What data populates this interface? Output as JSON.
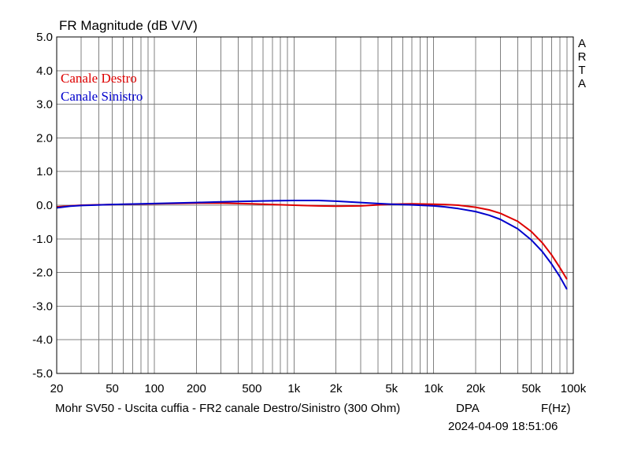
{
  "chart_data": {
    "type": "line",
    "title": "FR Magnitude (dB V/V)",
    "xlabel": "F(Hz)",
    "ylabel": "",
    "x_scale": "log",
    "xlim": [
      20,
      100000
    ],
    "ylim": [
      -5.0,
      5.0
    ],
    "grid": true,
    "legend_placement": "top-left",
    "x_ticks": [
      {
        "v": 20,
        "label": "20"
      },
      {
        "v": 50,
        "label": "50"
      },
      {
        "v": 100,
        "label": "100"
      },
      {
        "v": 200,
        "label": "200"
      },
      {
        "v": 500,
        "label": "500"
      },
      {
        "v": 1000,
        "label": "1k"
      },
      {
        "v": 2000,
        "label": "2k"
      },
      {
        "v": 5000,
        "label": "5k"
      },
      {
        "v": 10000,
        "label": "10k"
      },
      {
        "v": 20000,
        "label": "20k"
      },
      {
        "v": 50000,
        "label": "50k"
      },
      {
        "v": 100000,
        "label": "100k"
      }
    ],
    "y_ticks": [
      {
        "v": 5,
        "label": "5.0"
      },
      {
        "v": 4,
        "label": "4.0"
      },
      {
        "v": 3,
        "label": "3.0"
      },
      {
        "v": 2,
        "label": "2.0"
      },
      {
        "v": 1,
        "label": "1.0"
      },
      {
        "v": 0,
        "label": "0.0"
      },
      {
        "v": -1,
        "label": "-1.0"
      },
      {
        "v": -2,
        "label": "-2.0"
      },
      {
        "v": -3,
        "label": "-3.0"
      },
      {
        "v": -4,
        "label": "-4.0"
      },
      {
        "v": -5,
        "label": "-5.0"
      }
    ],
    "series": [
      {
        "name": "Canale Destro",
        "color": "#dd0000",
        "x": [
          20,
          25,
          30,
          50,
          100,
          200,
          300,
          500,
          700,
          1000,
          1500,
          2000,
          3000,
          4000,
          5000,
          7000,
          10000,
          12000,
          15000,
          20000,
          25000,
          30000,
          40000,
          50000,
          60000,
          70000,
          80000,
          90000
        ],
        "y": [
          -0.05,
          -0.02,
          0.0,
          0.02,
          0.04,
          0.06,
          0.06,
          0.04,
          0.02,
          0.0,
          -0.02,
          -0.03,
          -0.02,
          0.01,
          0.03,
          0.04,
          0.03,
          0.02,
          0.0,
          -0.06,
          -0.14,
          -0.24,
          -0.48,
          -0.78,
          -1.12,
          -1.48,
          -1.85,
          -2.2
        ]
      },
      {
        "name": "Canale Sinistro",
        "color": "#0000cc",
        "x": [
          20,
          25,
          30,
          50,
          100,
          200,
          300,
          500,
          700,
          1000,
          1500,
          2000,
          3000,
          4000,
          5000,
          7000,
          10000,
          12000,
          15000,
          20000,
          25000,
          30000,
          40000,
          50000,
          60000,
          70000,
          80000,
          90000
        ],
        "y": [
          -0.08,
          -0.03,
          -0.01,
          0.02,
          0.05,
          0.08,
          0.1,
          0.12,
          0.13,
          0.14,
          0.14,
          0.12,
          0.08,
          0.05,
          0.03,
          0.01,
          -0.02,
          -0.05,
          -0.1,
          -0.19,
          -0.3,
          -0.42,
          -0.7,
          -1.03,
          -1.38,
          -1.75,
          -2.12,
          -2.5
        ]
      }
    ]
  },
  "side_label": [
    "A",
    "R",
    "T",
    "A"
  ],
  "footer": {
    "description": "Mohr SV50 - Uscita cuffia - FR2 canale Destro/Sinistro (300 Ohm)",
    "dpa": "DPA",
    "x_unit": "F(Hz)",
    "datetime": "2024-04-09  18:51:06"
  }
}
